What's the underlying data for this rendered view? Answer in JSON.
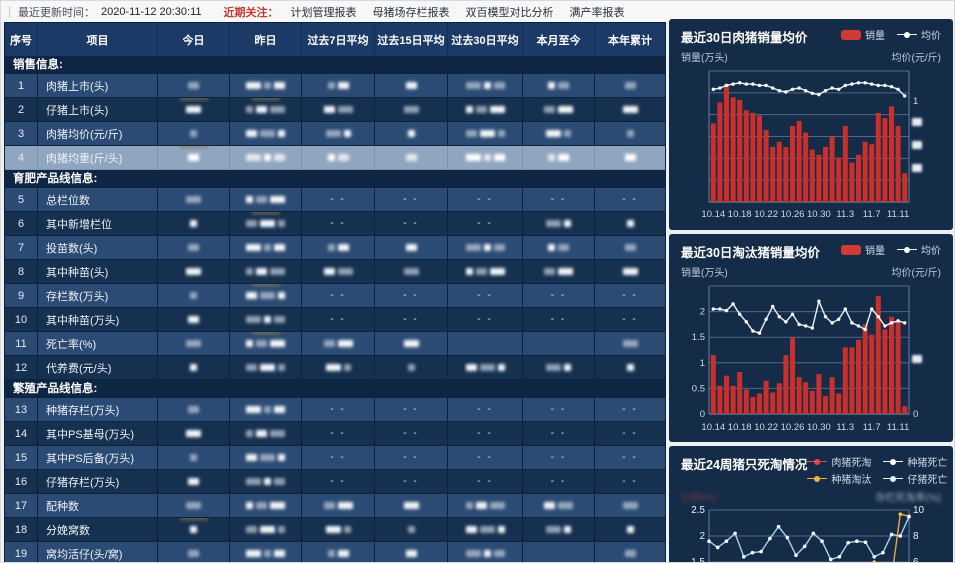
{
  "topbar": {
    "update_label": "最近更新时间：",
    "update_time": "2020-11-12 20:30:11",
    "focus_label": "近期关注：",
    "links": [
      "计划管理报表",
      "母猪场存栏报表",
      "双百模型对比分析",
      "满产率报表"
    ]
  },
  "table": {
    "columns": [
      "序号",
      "项目",
      "今日",
      "昨日",
      "过去7日平均",
      "过去15日平均",
      "过去30日平均",
      "本月至今",
      "本年累计"
    ],
    "sections": [
      {
        "title": "销售信息:",
        "rows": [
          {
            "no": "1",
            "label": "肉猪上市(头)",
            "cells": [
              "b",
              "b",
              "b",
              "b",
              "b",
              "b",
              "b"
            ]
          },
          {
            "no": "2",
            "label": "仔猪上市(头)",
            "cells": [
              "bt",
              "bt",
              "b",
              "b",
              "b",
              "b",
              "b"
            ]
          },
          {
            "no": "3",
            "label": "肉猪均价(元/斤)",
            "cells": [
              "b",
              "b",
              "b",
              "b",
              "b",
              "b",
              "b"
            ]
          },
          {
            "no": "4",
            "label": "肉猪均重(斤/头)",
            "cells": [
              "bt",
              "b",
              "b",
              "b",
              "b",
              "b",
              "b"
            ],
            "selected": true
          }
        ]
      },
      {
        "title": "育肥产品线信息:",
        "rows": [
          {
            "no": "5",
            "label": "总栏位数",
            "cells": [
              "b",
              "b",
              "d",
              "d",
              "d",
              "d",
              "d"
            ]
          },
          {
            "no": "6",
            "label": "其中新增栏位",
            "cells": [
              "b",
              "bt",
              "d",
              "d",
              "d",
              "b",
              "b"
            ]
          },
          {
            "no": "7",
            "label": "投苗数(头)",
            "cells": [
              "b",
              "b",
              "b",
              "b",
              "b",
              "b",
              "b"
            ]
          },
          {
            "no": "8",
            "label": "其中种苗(头)",
            "cells": [
              "b",
              "b",
              "b",
              "b",
              "b",
              "b",
              "b"
            ]
          },
          {
            "no": "9",
            "label": "存栏数(万头)",
            "cells": [
              "b",
              "bt",
              "d",
              "d",
              "d",
              "d",
              "d"
            ]
          },
          {
            "no": "10",
            "label": "其中种苗(万头)",
            "cells": [
              "b",
              "b",
              "d",
              "d",
              "d",
              "d",
              "d"
            ]
          },
          {
            "no": "11",
            "label": "死亡率(%)",
            "cells": [
              "b",
              "bt",
              "b",
              "b",
              "",
              "",
              "b"
            ]
          },
          {
            "no": "12",
            "label": "代养费(元/头)",
            "cells": [
              "b",
              "b",
              "b",
              "b",
              "b",
              "b",
              "b"
            ]
          }
        ]
      },
      {
        "title": "繁殖产品线信息:",
        "rows": [
          {
            "no": "13",
            "label": "种猪存栏(万头)",
            "cells": [
              "b",
              "b",
              "d",
              "d",
              "d",
              "d",
              "d"
            ]
          },
          {
            "no": "14",
            "label": "其中PS基母(万头)",
            "cells": [
              "b",
              "b",
              "d",
              "d",
              "d",
              "d",
              "d"
            ]
          },
          {
            "no": "15",
            "label": "其中PS后备(万头)",
            "cells": [
              "b",
              "b",
              "d",
              "d",
              "d",
              "d",
              "d"
            ]
          },
          {
            "no": "16",
            "label": "仔猪存栏(万头)",
            "cells": [
              "b",
              "b",
              "d",
              "d",
              "d",
              "d",
              "d"
            ]
          },
          {
            "no": "17",
            "label": "配种数",
            "cells": [
              "b",
              "b",
              "b",
              "b",
              "b",
              "b",
              "b"
            ]
          },
          {
            "no": "18",
            "label": "分娩窝数",
            "cells": [
              "bt",
              "b",
              "b",
              "b",
              "b",
              "b",
              "b"
            ]
          },
          {
            "no": "19",
            "label": "窝均活仔(头/窝)",
            "cells": [
              "b",
              "b",
              "b",
              "b",
              "b",
              "",
              "b"
            ]
          }
        ]
      }
    ]
  },
  "chart_data": [
    {
      "type": "bar+line",
      "title": "最近30日肉猪销量均价",
      "legend": [
        "销量",
        "均价"
      ],
      "left_axis_label": "销量(万头)",
      "right_axis_label": "均价(元/斤)",
      "x_tick_labels": [
        "10.14",
        "10.18",
        "10.22",
        "10.26",
        "10.30",
        "11.3",
        "11.7",
        "11.11"
      ],
      "x_tick_indices": [
        0,
        4,
        8,
        12,
        16,
        20,
        24,
        28
      ],
      "bars_relative": [
        0.6,
        0.76,
        0.9,
        0.8,
        0.78,
        0.7,
        0.68,
        0.66,
        0.55,
        0.42,
        0.46,
        0.42,
        0.58,
        0.62,
        0.53,
        0.4,
        0.36,
        0.42,
        0.5,
        0.34,
        0.58,
        0.3,
        0.36,
        0.46,
        0.44,
        0.68,
        0.64,
        0.73,
        0.58,
        0.22
      ],
      "line_relative": [
        0.86,
        0.87,
        0.89,
        0.9,
        0.91,
        0.9,
        0.9,
        0.89,
        0.89,
        0.87,
        0.85,
        0.84,
        0.86,
        0.87,
        0.85,
        0.83,
        0.82,
        0.85,
        0.87,
        0.86,
        0.89,
        0.9,
        0.91,
        0.91,
        0.9,
        0.89,
        0.89,
        0.88,
        0.86,
        0.81
      ],
      "right_tick_visible": "1",
      "right_ticks_redacted": 3
    },
    {
      "type": "bar+line",
      "title": "最近30日淘汰猪销量均价",
      "legend": [
        "销量",
        "均价"
      ],
      "left_axis_label": "销量(万头)",
      "right_axis_label": "均价(元/斤)",
      "y_left_ticks": [
        "2",
        "1.5",
        "1",
        "0.5",
        "0"
      ],
      "ylim_left": [
        0,
        2.5
      ],
      "x_tick_labels": [
        "10.14",
        "10.18",
        "10.22",
        "10.26",
        "10.30",
        "11.3",
        "11.7",
        "11.11"
      ],
      "x_tick_indices": [
        0,
        4,
        8,
        12,
        16,
        20,
        24,
        28
      ],
      "bars": [
        1.15,
        0.55,
        0.75,
        0.55,
        0.82,
        0.48,
        0.33,
        0.4,
        0.65,
        0.42,
        0.6,
        1.15,
        1.5,
        0.72,
        0.62,
        0.45,
        0.78,
        0.35,
        0.72,
        0.4,
        1.3,
        1.3,
        1.45,
        1.75,
        1.55,
        2.3,
        1.65,
        1.9,
        1.8,
        0.15
      ],
      "line": [
        2.05,
        2.05,
        2.02,
        2.15,
        1.95,
        1.8,
        1.62,
        1.58,
        1.85,
        2.1,
        1.9,
        1.8,
        1.95,
        1.75,
        1.72,
        1.68,
        2.2,
        1.9,
        1.78,
        1.85,
        2.05,
        1.78,
        1.72,
        1.65,
        2.05,
        1.9,
        1.72,
        1.78,
        1.82,
        1.78
      ],
      "right_tick_visible": "0",
      "right_ticks_redacted": 1
    },
    {
      "type": "line",
      "title": "最近24周猪只死淘情况",
      "legend": [
        "肉猪死淘",
        "种猪死亡",
        "种猪淘汰",
        "仔猪死亡"
      ],
      "left_axis_label_blurred": "比例(%)",
      "right_axis_label_blurred": "存栏死淘率(%)",
      "y_left_ticks": [
        "2.5",
        "2",
        "1.5"
      ],
      "y_right_ticks": [
        "10",
        "8",
        "6"
      ],
      "series": [
        {
          "name": "仔猪死亡",
          "values": [
            1.9,
            1.78,
            1.9,
            2.05,
            1.6,
            1.68,
            1.7,
            1.95,
            2.18,
            1.97,
            1.63,
            1.8,
            2.05,
            1.9,
            1.55,
            1.6,
            1.87,
            1.9,
            1.88,
            1.6,
            1.68,
            2.03,
            2.0,
            2.37
          ]
        },
        {
          "name": "种猪淘汰",
          "values": [
            1.1,
            1.1,
            1.1,
            1.1,
            1.1,
            1.1,
            1.1,
            1.1,
            1.1,
            1.1,
            1.1,
            1.1,
            1.1,
            1.1,
            1.1,
            1.1,
            1.1,
            1.1,
            1.1,
            1.5,
            1.15,
            1.2,
            2.42,
            2.38
          ]
        },
        {
          "name": "肉猪死淘",
          "values": []
        },
        {
          "name": "种猪死亡",
          "values": []
        }
      ]
    }
  ],
  "colors": {
    "focus_red": "#c8382f",
    "bar_red": "#c9302c",
    "line_white": "#e9f2fb",
    "legend_red_dot": "#e2474b",
    "legend_white_dot": "#ffffff",
    "legend_orange_dot": "#f3b23e",
    "legend_lightblue_dot": "#dff0fc",
    "series_orange": "#f0a63a",
    "series_lightblue": "#a9d4f0"
  }
}
